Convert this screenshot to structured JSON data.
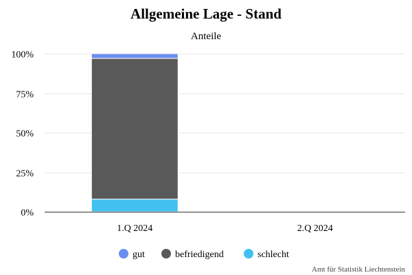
{
  "chart_data": {
    "type": "bar",
    "stacked": true,
    "title": "Allgemeine Lage - Stand",
    "subtitle": "Anteile",
    "categories": [
      "1.Q 2024",
      "2.Q 2024"
    ],
    "series": [
      {
        "name": "gut",
        "color": "#6b8fef",
        "values": [
          3,
          0
        ]
      },
      {
        "name": "befriedigend",
        "color": "#595959",
        "values": [
          89,
          0
        ]
      },
      {
        "name": "schlecht",
        "color": "#41c1ef",
        "values": [
          8,
          0
        ]
      }
    ],
    "ylim": [
      0,
      100
    ],
    "y_ticks": [
      "0%",
      "25%",
      "50%",
      "75%",
      "100%"
    ],
    "grid": true,
    "legend_position": "bottom",
    "credit": "Amt für Statistik Liechtenstein"
  }
}
